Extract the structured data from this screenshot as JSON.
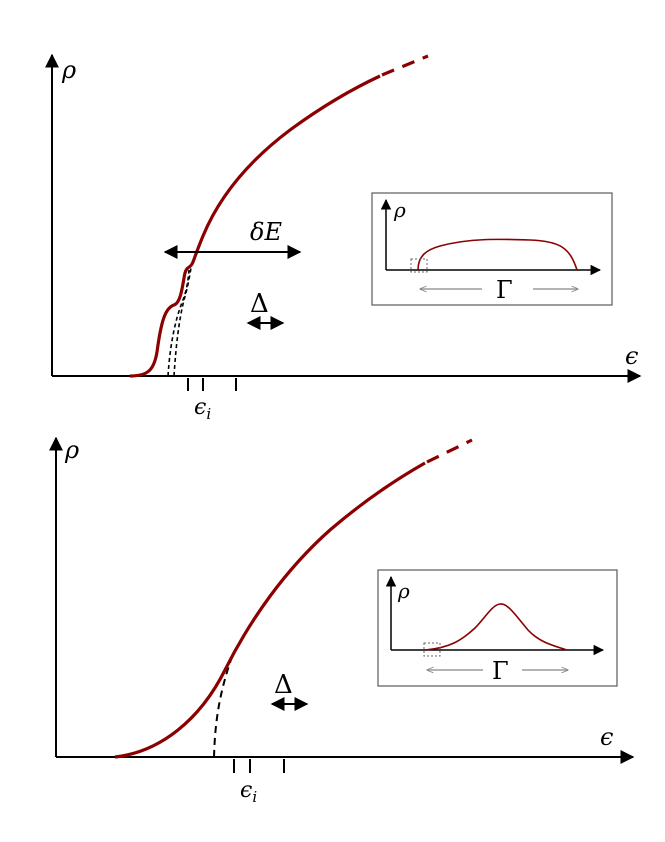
{
  "colors": {
    "curve": "#8b0000",
    "axis": "#000000",
    "inset_border": "#666666",
    "inset_arrow": "#888888",
    "guide": "#000000"
  },
  "panels": [
    {
      "axis_y_label": "ρ",
      "axis_x_label": "ϵ",
      "tick_label": "ϵ",
      "tick_label_sub": "i",
      "width_label": "δE",
      "spacing_label": "Δ",
      "inset": {
        "axis_y_label": "ρ",
        "gamma_label": "Γ",
        "shape": "flat-top"
      }
    },
    {
      "axis_y_label": "ρ",
      "axis_x_label": "ϵ",
      "tick_label": "ϵ",
      "tick_label_sub": "i",
      "spacing_label": "Δ",
      "inset": {
        "axis_y_label": "ρ",
        "gamma_label": "Γ",
        "shape": "peaked"
      }
    }
  ]
}
